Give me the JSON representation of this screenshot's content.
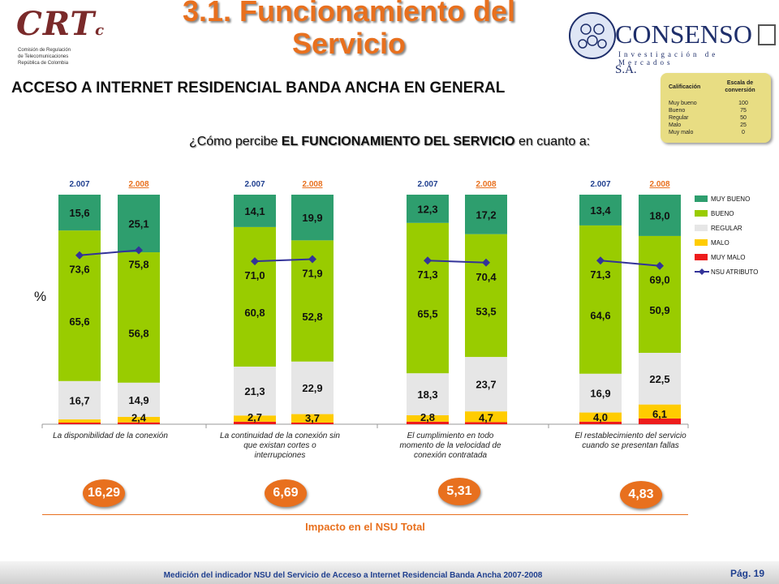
{
  "header": {
    "title": "3.1. Funcionamiento del Servicio",
    "crt_logo": "CRT",
    "crt_logo_letter": "c",
    "crt_sub": [
      "Comisión de Regulación",
      "de Telecomunicaciones",
      "República de Colombia"
    ],
    "consenso_name": "CONSENSO",
    "consenso_sa": "S.A.",
    "consenso_sub": "Investigación de Mercados"
  },
  "subtitle": "ACCESO A INTERNET RESIDENCIAL BANDA ANCHA EN GENERAL",
  "question": {
    "prefix": "¿Cómo percibe ",
    "bold": "EL FUNCIONAMIENTO DEL SERVICIO",
    "suffix": " en cuanto a:"
  },
  "scale": {
    "h1": "Calificación",
    "h2": "Escala de conversión",
    "rows": [
      {
        "label": "Muy bueno",
        "value": "100"
      },
      {
        "label": "Bueno",
        "value": "75"
      },
      {
        "label": "Regular",
        "value": "50"
      },
      {
        "label": "Malo",
        "value": "25"
      },
      {
        "label": "Muy malo",
        "value": "0"
      }
    ]
  },
  "colors": {
    "muy_bueno": "#2e9e6e",
    "bueno": "#99cc00",
    "regular": "#e6e6e6",
    "malo": "#ffcc00",
    "muy_malo": "#ee1c1c",
    "nsu": "#333399",
    "accent": "#e8701e"
  },
  "chart_data": {
    "type": "bar",
    "stacked": true,
    "ylabel": "%",
    "ylim": [
      0,
      100
    ],
    "legend_position": "right",
    "legend": [
      "MUY BUENO",
      "BUENO",
      "REGULAR",
      "MALO",
      "MUY MALO",
      "NSU ATRIBUTO"
    ],
    "groups": [
      {
        "category": "La disponibilidad de la conexión",
        "impact": "16,29",
        "bars": [
          {
            "year": "2.007",
            "muy_bueno": 15.6,
            "bueno": 65.6,
            "regular": 16.7,
            "malo": 1.4,
            "muy_malo": 0.7,
            "nsu": 73.6,
            "labels": {
              "muy_bueno": "15,6",
              "bueno": "65,6",
              "regular": "16,7",
              "malo": "",
              "nsu": "73,6"
            }
          },
          {
            "year": "2.008",
            "muy_bueno": 25.1,
            "bueno": 56.8,
            "regular": 14.9,
            "malo": 2.4,
            "muy_malo": 0.8,
            "nsu": 75.8,
            "labels": {
              "muy_bueno": "25,1",
              "bueno": "56,8",
              "regular": "14,9",
              "malo": "2,4",
              "nsu": "75,8"
            }
          }
        ]
      },
      {
        "category": "La continuidad de la conexión sin que existan cortes o interrupciones",
        "impact": "6,69",
        "bars": [
          {
            "year": "2.007",
            "muy_bueno": 14.1,
            "bueno": 60.8,
            "regular": 21.3,
            "malo": 2.7,
            "muy_malo": 1.1,
            "nsu": 71.0,
            "labels": {
              "muy_bueno": "14,1",
              "bueno": "60,8",
              "regular": "21,3",
              "malo": "2,7",
              "nsu": "71,0"
            }
          },
          {
            "year": "2.008",
            "muy_bueno": 19.9,
            "bueno": 52.8,
            "regular": 22.9,
            "malo": 3.7,
            "muy_malo": 0.7,
            "nsu": 71.9,
            "labels": {
              "muy_bueno": "19,9",
              "bueno": "52,8",
              "regular": "22,9",
              "malo": "3,7",
              "nsu": "71,9"
            }
          }
        ]
      },
      {
        "category": "El cumplimiento en todo momento de la velocidad de conexión contratada",
        "impact": "5,31",
        "bars": [
          {
            "year": "2.007",
            "muy_bueno": 12.3,
            "bueno": 65.5,
            "regular": 18.3,
            "malo": 2.8,
            "muy_malo": 1.1,
            "nsu": 71.3,
            "labels": {
              "muy_bueno": "12,3",
              "bueno": "65,5",
              "regular": "18,3",
              "malo": "2,8",
              "nsu": "71,3"
            }
          },
          {
            "year": "2.008",
            "muy_bueno": 17.2,
            "bueno": 53.5,
            "regular": 23.7,
            "malo": 4.7,
            "muy_malo": 0.9,
            "nsu": 70.4,
            "labels": {
              "muy_bueno": "17,2",
              "bueno": "53,5",
              "regular": "23,7",
              "malo": "4,7",
              "nsu": "70,4"
            }
          }
        ]
      },
      {
        "category": "El restablecimiento del servicio cuando se presentan fallas",
        "impact": "4,83",
        "bars": [
          {
            "year": "2.007",
            "muy_bueno": 13.4,
            "bueno": 64.6,
            "regular": 16.9,
            "malo": 4.0,
            "muy_malo": 1.1,
            "nsu": 71.3,
            "labels": {
              "muy_bueno": "13,4",
              "bueno": "64,6",
              "regular": "16,9",
              "malo": "4,0",
              "nsu": "71,3"
            }
          },
          {
            "year": "2.008",
            "muy_bueno": 18.0,
            "bueno": 50.9,
            "regular": 22.5,
            "malo": 6.1,
            "muy_malo": 2.5,
            "nsu": 69.0,
            "labels": {
              "muy_bueno": "18,0",
              "bueno": "50,9",
              "regular": "22,5",
              "malo": "6,1",
              "nsu": "69,0"
            }
          }
        ]
      }
    ]
  },
  "impact_label": "Impacto en el NSU Total",
  "footer": {
    "text": "Medición del indicador NSU del Servicio de Acceso a Internet Residencial Banda Ancha 2007-2008",
    "page": "Pág. 19"
  }
}
